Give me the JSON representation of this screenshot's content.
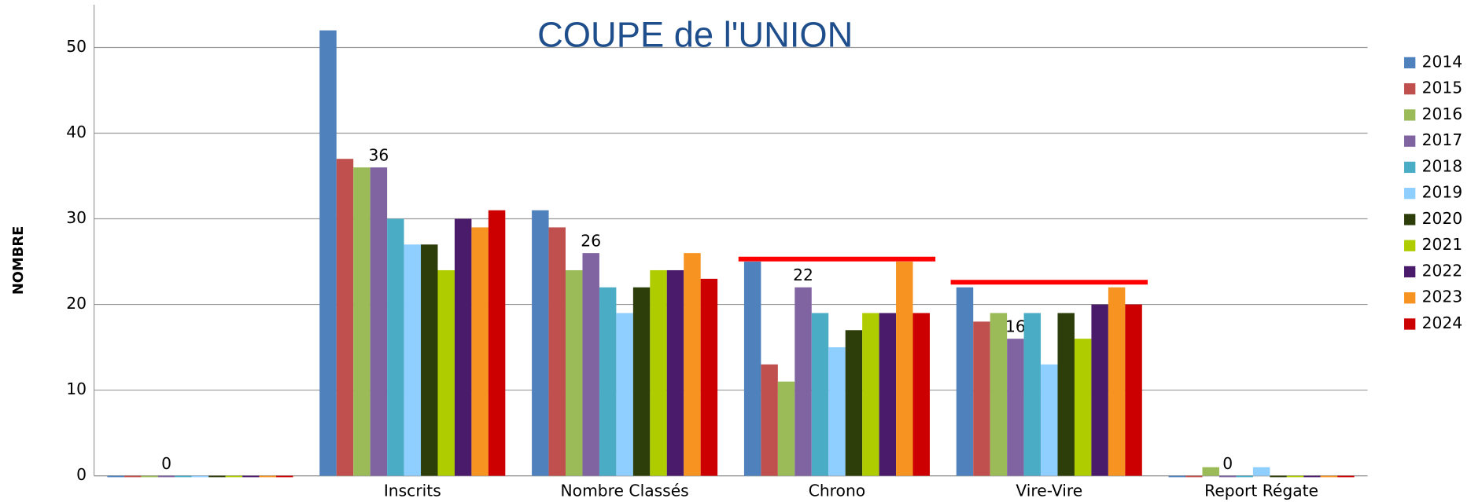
{
  "chart_data": {
    "type": "bar",
    "title": "COUPE de l'UNION",
    "y_label": "NOMBRE",
    "categories": [
      null,
      "Inscrits",
      "Nombre Classés",
      "Chrono",
      "Vire-Vire",
      "Report Régate"
    ],
    "series": [
      {
        "name": "2014",
        "color": "#4f81bd",
        "values": [
          0,
          52,
          31,
          25,
          22,
          0
        ]
      },
      {
        "name": "2015",
        "color": "#c0504d",
        "values": [
          0,
          37,
          29,
          13,
          18,
          0
        ]
      },
      {
        "name": "2016",
        "color": "#9bbb59",
        "values": [
          0,
          36,
          24,
          11,
          19,
          1
        ]
      },
      {
        "name": "2017",
        "color": "#8064a2",
        "values": [
          0,
          36,
          26,
          22,
          16,
          0
        ],
        "show_labels": true
      },
      {
        "name": "2018",
        "color": "#4bacc6",
        "values": [
          0,
          30,
          22,
          19,
          19,
          0
        ]
      },
      {
        "name": "2019",
        "color": "#8fcfff",
        "values": [
          0,
          27,
          19,
          15,
          13,
          1
        ]
      },
      {
        "name": "2020",
        "color": "#2d3e0b",
        "values": [
          0,
          27,
          22,
          17,
          19,
          0
        ]
      },
      {
        "name": "2021",
        "color": "#afcc00",
        "values": [
          0,
          24,
          24,
          19,
          16,
          0
        ]
      },
      {
        "name": "2022",
        "color": "#4a1a6b",
        "values": [
          0,
          30,
          24,
          19,
          20,
          0
        ]
      },
      {
        "name": "2023",
        "color": "#f79320",
        "values": [
          0,
          29,
          26,
          25,
          22,
          0
        ]
      },
      {
        "name": "2024",
        "color": "#cc0000",
        "values": [
          0,
          31,
          23,
          19,
          20,
          0
        ]
      }
    ],
    "reference_lines": [
      {
        "category": 3,
        "value": 25.3,
        "color": "#ff0000"
      },
      {
        "category": 4,
        "value": 22.6,
        "color": "#ff0000"
      }
    ],
    "ylim": [
      0,
      55
    ],
    "yticks": [
      0,
      10,
      20,
      30,
      40,
      50
    ],
    "grid": true,
    "legend": "right"
  }
}
